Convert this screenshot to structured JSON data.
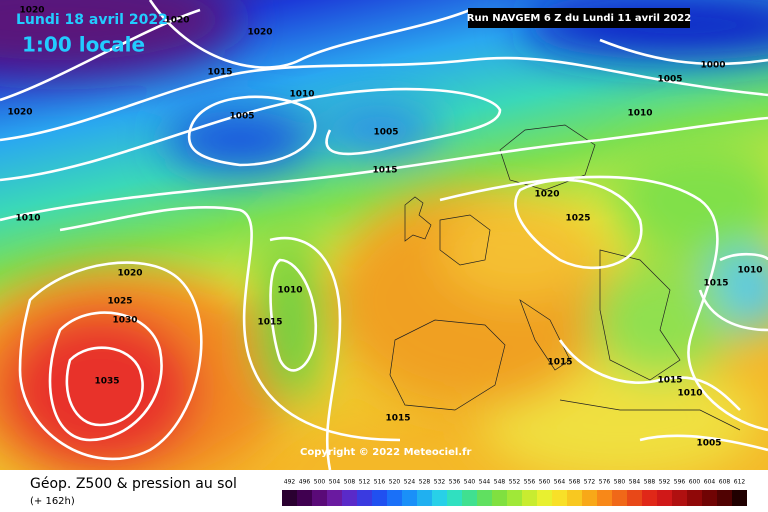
{
  "header": {
    "date": "Lundi 18 avril 2022",
    "time": "1:00 locale",
    "run": "Run NAVGEM 6 Z du Lundi 11 avril 2022"
  },
  "copyright": "Copyright © 2022 Meteociel.fr",
  "footer": {
    "title": "Géop. Z500 & pression au sol",
    "subtitle": "(+ 162h)"
  },
  "isobar_labels": [
    "1020",
    "1020",
    "1020",
    "1015",
    "1010",
    "1005",
    "1005",
    "1020",
    "1015",
    "1010",
    "1020",
    "1025",
    "1020",
    "1025",
    "1030",
    "1010",
    "1015",
    "1035",
    "1015",
    "1010",
    "1015",
    "1015",
    "1010",
    "1015",
    "1005",
    "1005",
    "1000",
    "1010"
  ],
  "legend": [
    "492",
    "496",
    "500",
    "504",
    "508",
    "512",
    "516",
    "520",
    "524",
    "528",
    "532",
    "536",
    "540",
    "544",
    "548",
    "552",
    "556",
    "560",
    "564",
    "568",
    "572",
    "576",
    "580",
    "584",
    "588",
    "592",
    "596",
    "600",
    "604",
    "608",
    "612"
  ]
}
